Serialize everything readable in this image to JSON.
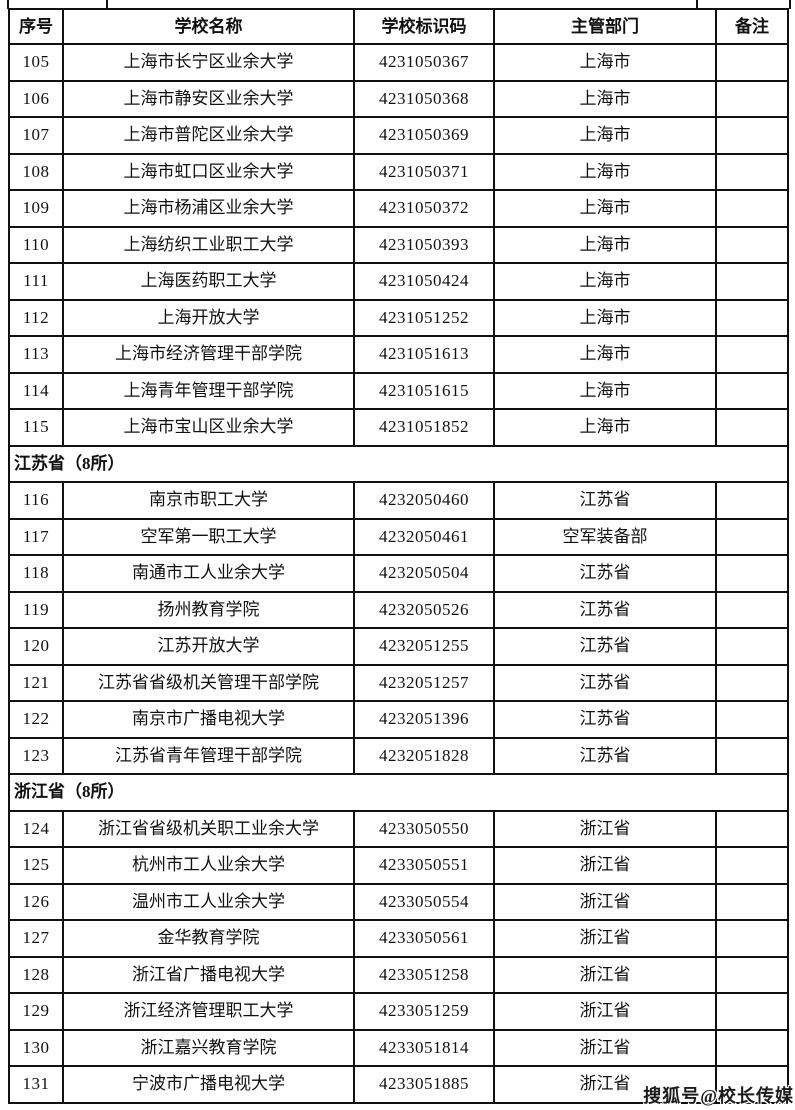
{
  "page": {
    "watermark": "搜狐号@校长传媒"
  },
  "table": {
    "headers": [
      "序号",
      "学校名称",
      "学校标识码",
      "主管部门",
      "备注"
    ],
    "rows": [
      {
        "type": "data",
        "no": "105",
        "name": "上海市长宁区业余大学",
        "code": "4231050367",
        "dept": "上海市",
        "note": ""
      },
      {
        "type": "data",
        "no": "106",
        "name": "上海市静安区业余大学",
        "code": "4231050368",
        "dept": "上海市",
        "note": ""
      },
      {
        "type": "data",
        "no": "107",
        "name": "上海市普陀区业余大学",
        "code": "4231050369",
        "dept": "上海市",
        "note": ""
      },
      {
        "type": "data",
        "no": "108",
        "name": "上海市虹口区业余大学",
        "code": "4231050371",
        "dept": "上海市",
        "note": ""
      },
      {
        "type": "data",
        "no": "109",
        "name": "上海市杨浦区业余大学",
        "code": "4231050372",
        "dept": "上海市",
        "note": ""
      },
      {
        "type": "data",
        "no": "110",
        "name": "上海纺织工业职工大学",
        "code": "4231050393",
        "dept": "上海市",
        "note": ""
      },
      {
        "type": "data",
        "no": "111",
        "name": "上海医药职工大学",
        "code": "4231050424",
        "dept": "上海市",
        "note": ""
      },
      {
        "type": "data",
        "no": "112",
        "name": "上海开放大学",
        "code": "4231051252",
        "dept": "上海市",
        "note": ""
      },
      {
        "type": "data",
        "no": "113",
        "name": "上海市经济管理干部学院",
        "code": "4231051613",
        "dept": "上海市",
        "note": ""
      },
      {
        "type": "data",
        "no": "114",
        "name": "上海青年管理干部学院",
        "code": "4231051615",
        "dept": "上海市",
        "note": ""
      },
      {
        "type": "data",
        "no": "115",
        "name": "上海市宝山区业余大学",
        "code": "4231051852",
        "dept": "上海市",
        "note": ""
      },
      {
        "type": "section",
        "label": "江苏省（8所）"
      },
      {
        "type": "data",
        "no": "116",
        "name": "南京市职工大学",
        "code": "4232050460",
        "dept": "江苏省",
        "note": ""
      },
      {
        "type": "data",
        "no": "117",
        "name": "空军第一职工大学",
        "code": "4232050461",
        "dept": "空军装备部",
        "note": ""
      },
      {
        "type": "data",
        "no": "118",
        "name": "南通市工人业余大学",
        "code": "4232050504",
        "dept": "江苏省",
        "note": ""
      },
      {
        "type": "data",
        "no": "119",
        "name": "扬州教育学院",
        "code": "4232050526",
        "dept": "江苏省",
        "note": ""
      },
      {
        "type": "data",
        "no": "120",
        "name": "江苏开放大学",
        "code": "4232051255",
        "dept": "江苏省",
        "note": ""
      },
      {
        "type": "data",
        "no": "121",
        "name": "江苏省省级机关管理干部学院",
        "code": "4232051257",
        "dept": "江苏省",
        "note": ""
      },
      {
        "type": "data",
        "no": "122",
        "name": "南京市广播电视大学",
        "code": "4232051396",
        "dept": "江苏省",
        "note": ""
      },
      {
        "type": "data",
        "no": "123",
        "name": "江苏省青年管理干部学院",
        "code": "4232051828",
        "dept": "江苏省",
        "note": ""
      },
      {
        "type": "section",
        "label": "浙江省（8所）"
      },
      {
        "type": "data",
        "no": "124",
        "name": "浙江省省级机关职工业余大学",
        "code": "4233050550",
        "dept": "浙江省",
        "note": ""
      },
      {
        "type": "data",
        "no": "125",
        "name": "杭州市工人业余大学",
        "code": "4233050551",
        "dept": "浙江省",
        "note": ""
      },
      {
        "type": "data",
        "no": "126",
        "name": "温州市工人业余大学",
        "code": "4233050554",
        "dept": "浙江省",
        "note": ""
      },
      {
        "type": "data",
        "no": "127",
        "name": "金华教育学院",
        "code": "4233050561",
        "dept": "浙江省",
        "note": ""
      },
      {
        "type": "data",
        "no": "128",
        "name": "浙江省广播电视大学",
        "code": "4233051258",
        "dept": "浙江省",
        "note": ""
      },
      {
        "type": "data",
        "no": "129",
        "name": "浙江经济管理职工大学",
        "code": "4233051259",
        "dept": "浙江省",
        "note": ""
      },
      {
        "type": "data",
        "no": "130",
        "name": "浙江嘉兴教育学院",
        "code": "4233051814",
        "dept": "浙江省",
        "note": ""
      },
      {
        "type": "data",
        "no": "131",
        "name": "宁波市广播电视大学",
        "code": "4233051885",
        "dept": "浙江省",
        "note": ""
      }
    ]
  }
}
